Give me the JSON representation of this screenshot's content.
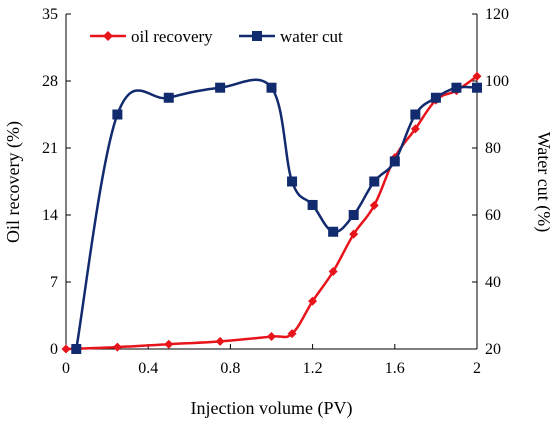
{
  "chart_data": {
    "type": "line",
    "xlabel": "Injection volume (PV)",
    "ylabel_left": "Oil recovery (%)",
    "ylabel_right": "Water cut (%)",
    "x_ticks": [
      "0",
      "0.4",
      "0.8",
      "1.2",
      "1.6",
      "2"
    ],
    "y_left_ticks": [
      "0",
      "7",
      "14",
      "21",
      "28",
      "35"
    ],
    "y_right_ticks": [
      "20",
      "40",
      "60",
      "80",
      "100",
      "120"
    ],
    "xlim": [
      0,
      2
    ],
    "ylim_left": [
      0,
      35
    ],
    "ylim_right": [
      20,
      120
    ],
    "grid": false,
    "legend_position": "top",
    "series": [
      {
        "name": "oil recovery",
        "axis": "left",
        "color": "#e8141b",
        "marker": "diamond",
        "x": [
          0,
          0.25,
          0.5,
          0.75,
          1.0,
          1.1,
          1.2,
          1.3,
          1.4,
          1.5,
          1.6,
          1.7,
          1.8,
          1.9,
          2.0
        ],
        "y": [
          0,
          0.2,
          0.5,
          0.8,
          1.3,
          1.6,
          5.0,
          8.1,
          12.0,
          15.0,
          20.0,
          23.0,
          26.0,
          27.0,
          28.5
        ]
      },
      {
        "name": "water cut",
        "axis": "right",
        "color": "#122a6e",
        "marker": "square",
        "x": [
          0.05,
          0.25,
          0.5,
          0.75,
          1.0,
          1.1,
          1.2,
          1.3,
          1.4,
          1.5,
          1.6,
          1.7,
          1.8,
          1.9,
          2.0
        ],
        "y": [
          20,
          90,
          95,
          98,
          98,
          70,
          63,
          55,
          60,
          70,
          76,
          90,
          95,
          98,
          98
        ]
      }
    ]
  }
}
